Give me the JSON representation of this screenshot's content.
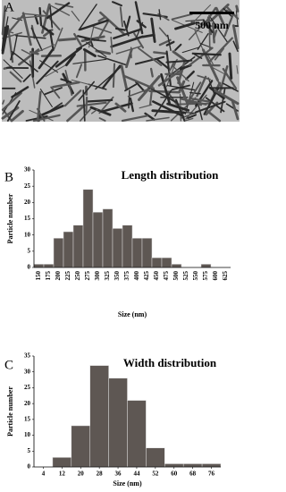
{
  "panel_a": {
    "label": "A",
    "scale_bar": "500 nm"
  },
  "chart_data": [
    {
      "type": "bar",
      "panel_label": "B",
      "title": "Length distribution",
      "ylabel": "Particle number",
      "xlabel": "Size (nm)",
      "categories": [
        "150",
        "175",
        "200",
        "225",
        "250",
        "275",
        "300",
        "325",
        "350",
        "375",
        "400",
        "425",
        "450",
        "475",
        "500",
        "525",
        "550",
        "575",
        "600",
        "625"
      ],
      "values": [
        1,
        1,
        9,
        11,
        13,
        24,
        17,
        18,
        12,
        13,
        9,
        9,
        3,
        3,
        1,
        0,
        0,
        1,
        0,
        0
      ],
      "color": "#5e5753",
      "ylim": [
        0,
        30
      ],
      "yticks": [
        0,
        5,
        10,
        15,
        20,
        25,
        30
      ]
    },
    {
      "type": "histogram",
      "panel_label": "C",
      "title": "Width distribution",
      "ylabel": "Particle number",
      "xlabel": "Size (nm)",
      "bins": [
        8,
        16,
        24,
        32,
        40,
        48,
        56,
        64,
        72,
        80
      ],
      "values": [
        3,
        13,
        32,
        28,
        21,
        6,
        1,
        1,
        1
      ],
      "color": "#5e5753",
      "xlim": [
        0,
        80
      ],
      "xticks": [
        4,
        12,
        20,
        28,
        36,
        44,
        52,
        60,
        68,
        76
      ],
      "ylim": [
        0,
        35
      ],
      "yticks": [
        0,
        5,
        10,
        15,
        20,
        25,
        30,
        35
      ]
    }
  ]
}
